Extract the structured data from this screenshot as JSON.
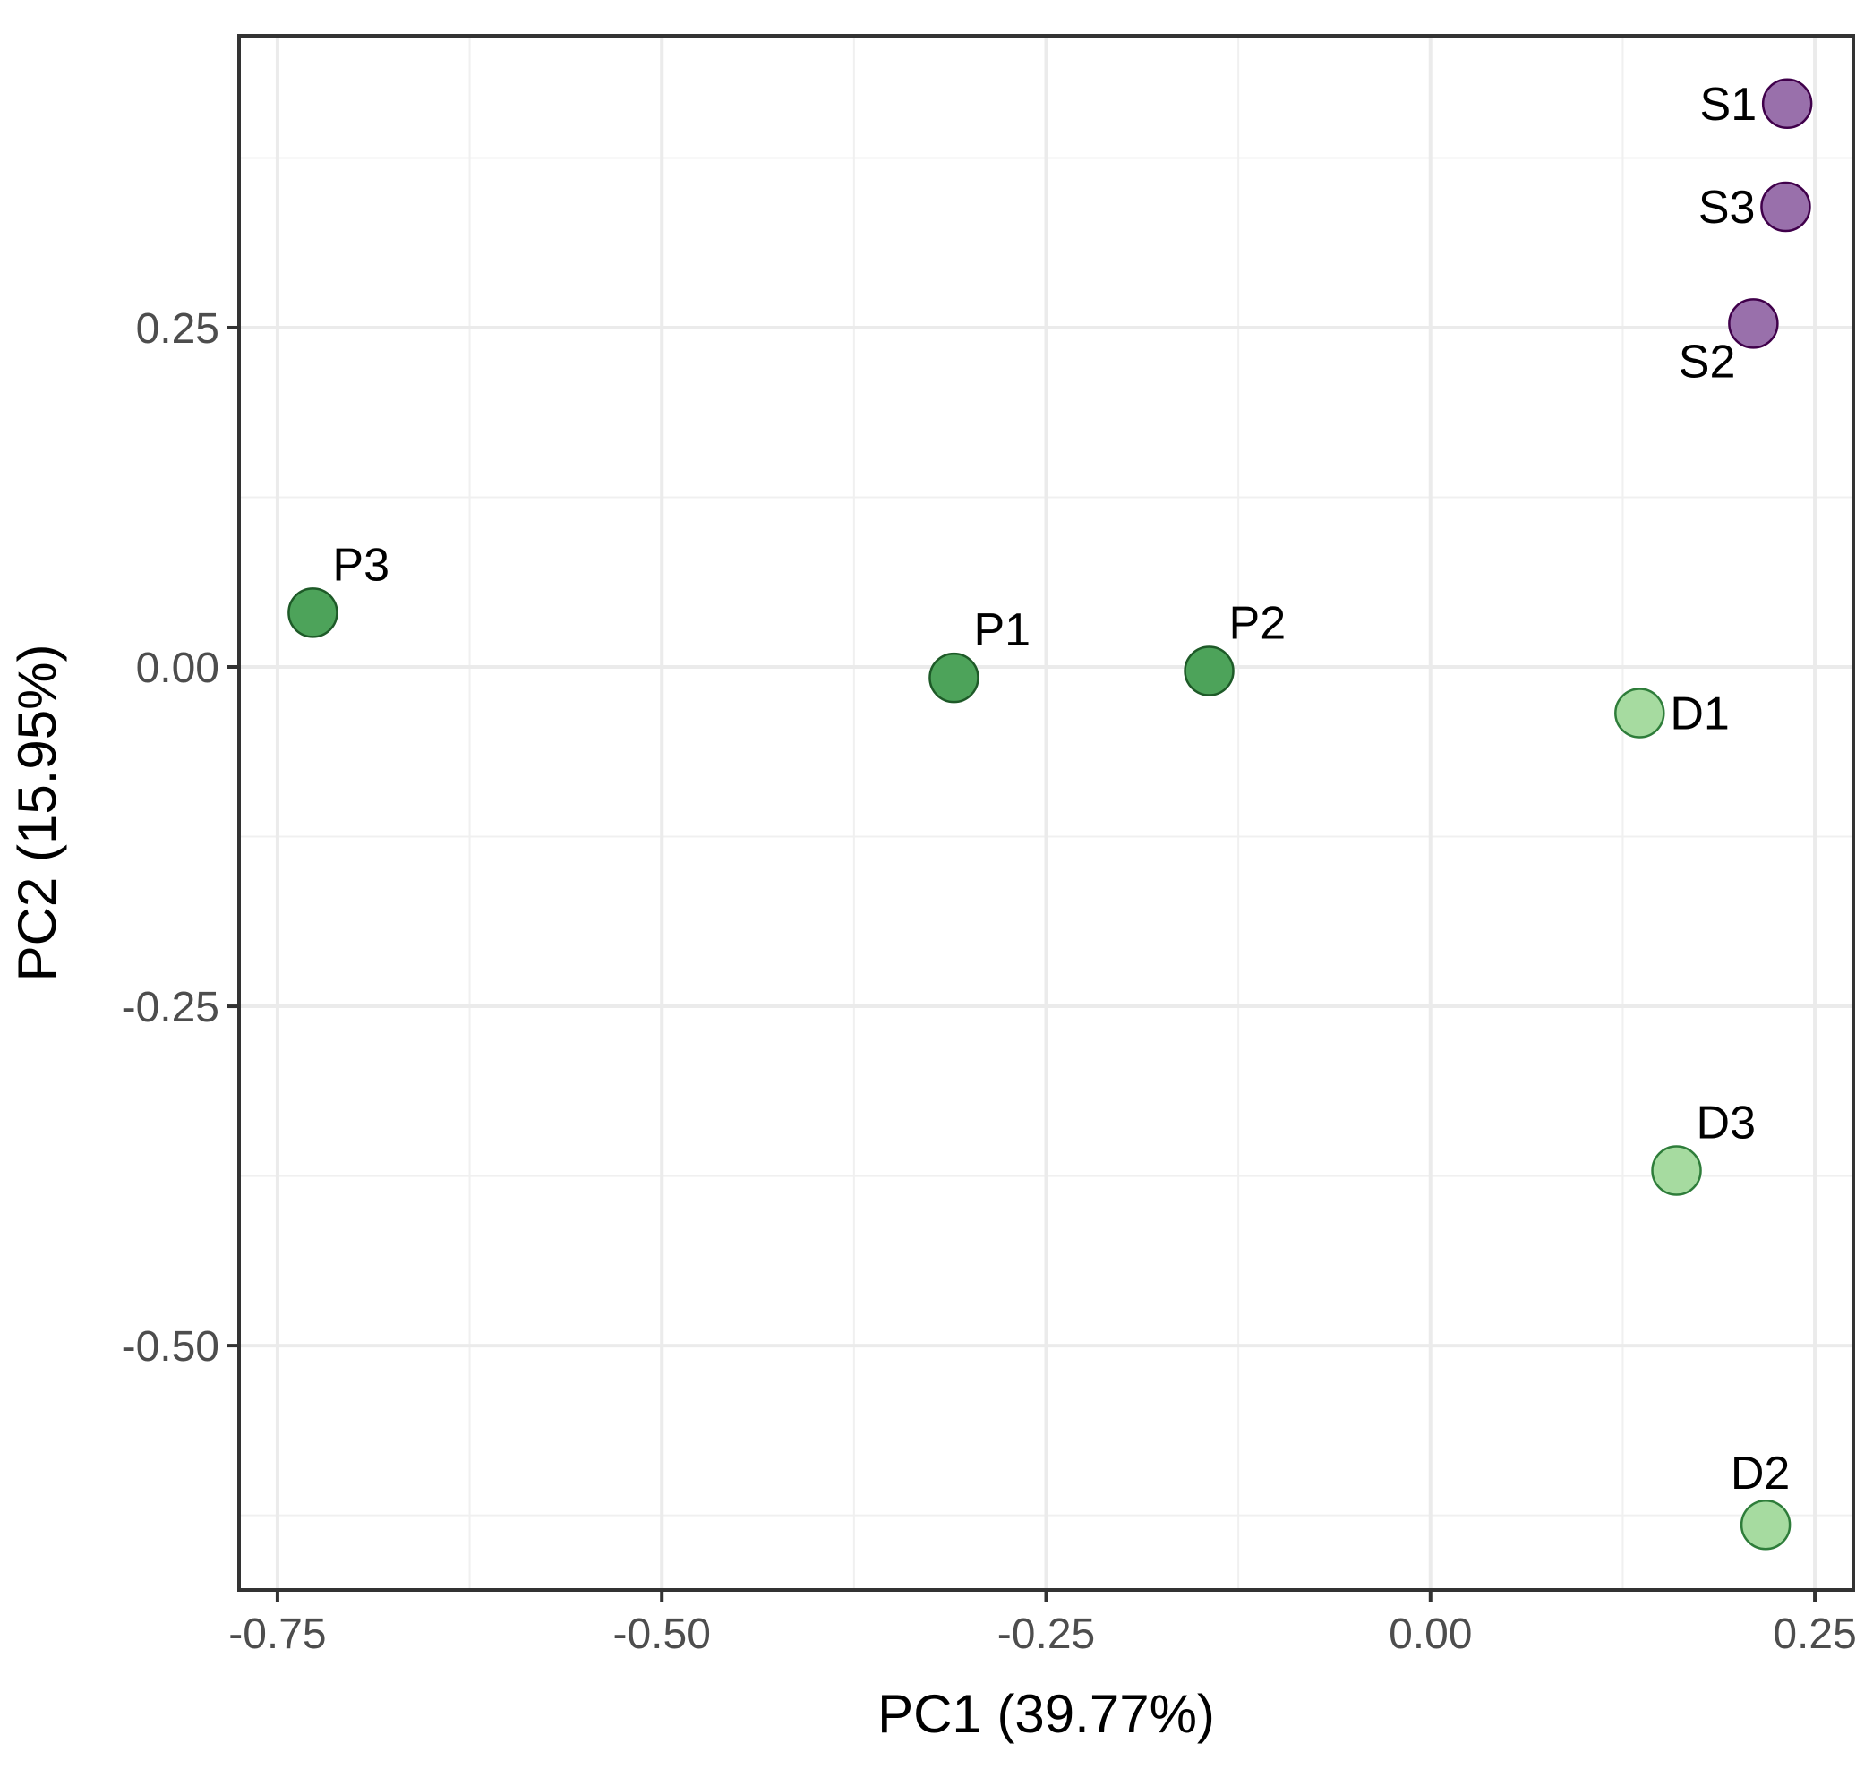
{
  "chart_data": {
    "type": "scatter",
    "title": "",
    "xlabel": "PC1 (39.77%)",
    "ylabel": "PC2 (15.95%)",
    "xlim": [
      -0.775,
      0.275
    ],
    "ylim": [
      -0.68,
      0.465
    ],
    "x_ticks": [
      -0.75,
      -0.5,
      -0.25,
      0.0,
      0.25
    ],
    "x_tick_labels": [
      "-0.75",
      "-0.50",
      "-0.25",
      "0.00",
      "0.25"
    ],
    "y_ticks": [
      0.25,
      0.0,
      -0.25,
      -0.5
    ],
    "y_tick_labels": [
      "0.25",
      "0.00",
      "-0.25",
      "-0.50"
    ],
    "grid": true,
    "groups": {
      "P": {
        "fill": "#4da35a",
        "stroke": "#1e5a28"
      },
      "D": {
        "fill": "#a6dba0",
        "stroke": "#2e7d3a"
      },
      "S": {
        "fill": "#9970ab",
        "stroke": "#40004b"
      }
    },
    "points": [
      {
        "label": "S1",
        "group": "S",
        "x": 0.232,
        "y": 0.415,
        "label_pos": "left"
      },
      {
        "label": "S3",
        "group": "S",
        "x": 0.231,
        "y": 0.339,
        "label_pos": "left"
      },
      {
        "label": "S2",
        "group": "S",
        "x": 0.21,
        "y": 0.253,
        "label_pos": "below-left"
      },
      {
        "label": "P3",
        "group": "P",
        "x": -0.727,
        "y": 0.04,
        "label_pos": "above-right"
      },
      {
        "label": "P1",
        "group": "P",
        "x": -0.31,
        "y": -0.008,
        "label_pos": "above-right"
      },
      {
        "label": "P2",
        "group": "P",
        "x": -0.144,
        "y": -0.003,
        "label_pos": "above-right"
      },
      {
        "label": "D1",
        "group": "D",
        "x": 0.136,
        "y": -0.034,
        "label_pos": "right"
      },
      {
        "label": "D3",
        "group": "D",
        "x": 0.16,
        "y": -0.371,
        "label_pos": "above-right"
      },
      {
        "label": "D2",
        "group": "D",
        "x": 0.218,
        "y": -0.632,
        "label_pos": "above"
      }
    ]
  }
}
